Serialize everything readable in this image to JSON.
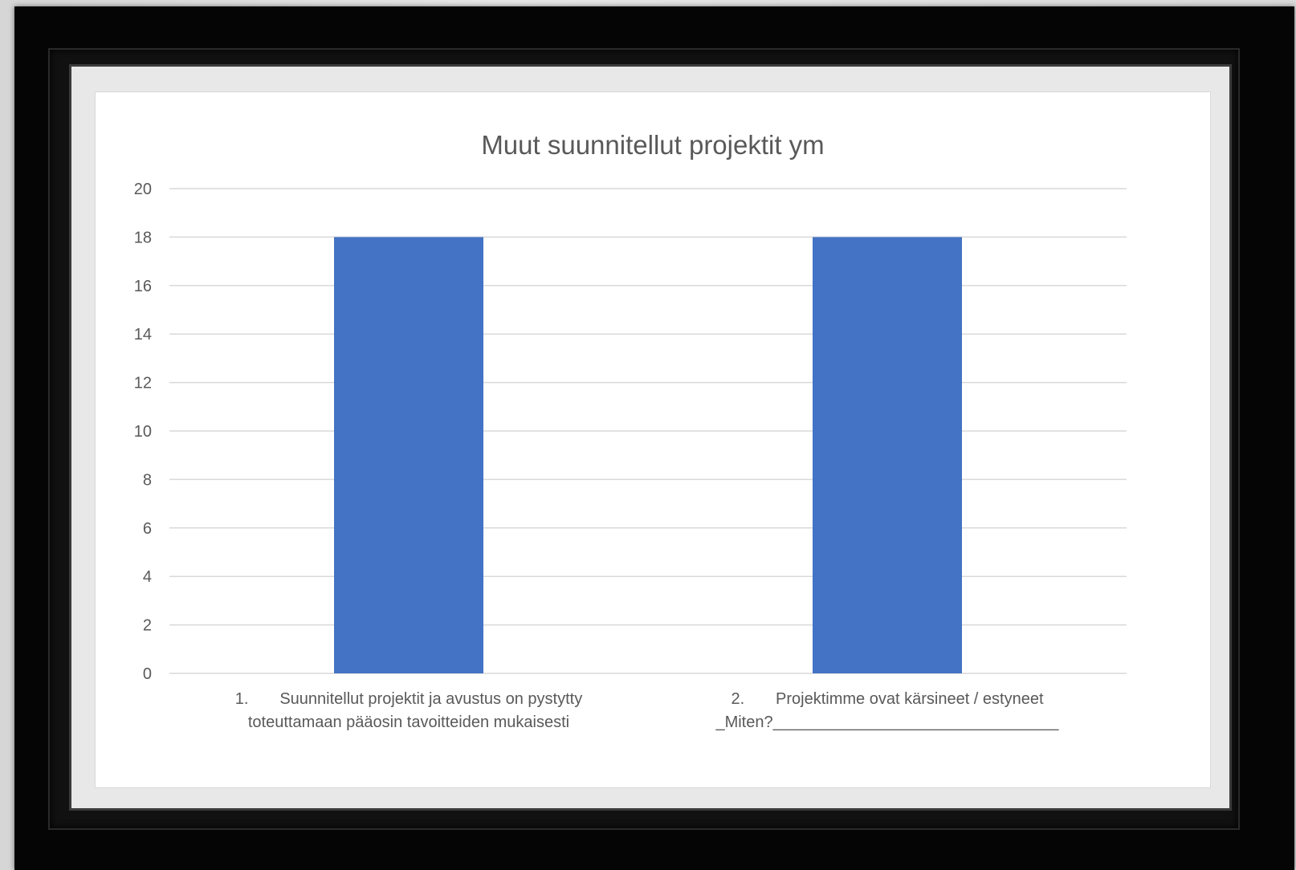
{
  "chart_data": {
    "type": "bar",
    "title": "Muut suunnitellut projektit ym",
    "xlabel": "",
    "ylabel": "",
    "categories": [
      [
        "1.       Suunnitellut projektit ja avustus on pystytty",
        "toteuttamaan pääosin tavoitteiden mukaisesti"
      ],
      [
        "2.       Projektimme ovat kärsineet / estyneet",
        "_Miten?________________________________"
      ]
    ],
    "values": [
      18,
      18
    ],
    "ylim": [
      0,
      20
    ],
    "yticks": [
      0,
      2,
      4,
      6,
      8,
      10,
      12,
      14,
      16,
      18,
      20
    ],
    "grid": true,
    "legend": "none",
    "bar_color": "#4472c4",
    "grid_color": "#d9d9d9"
  }
}
